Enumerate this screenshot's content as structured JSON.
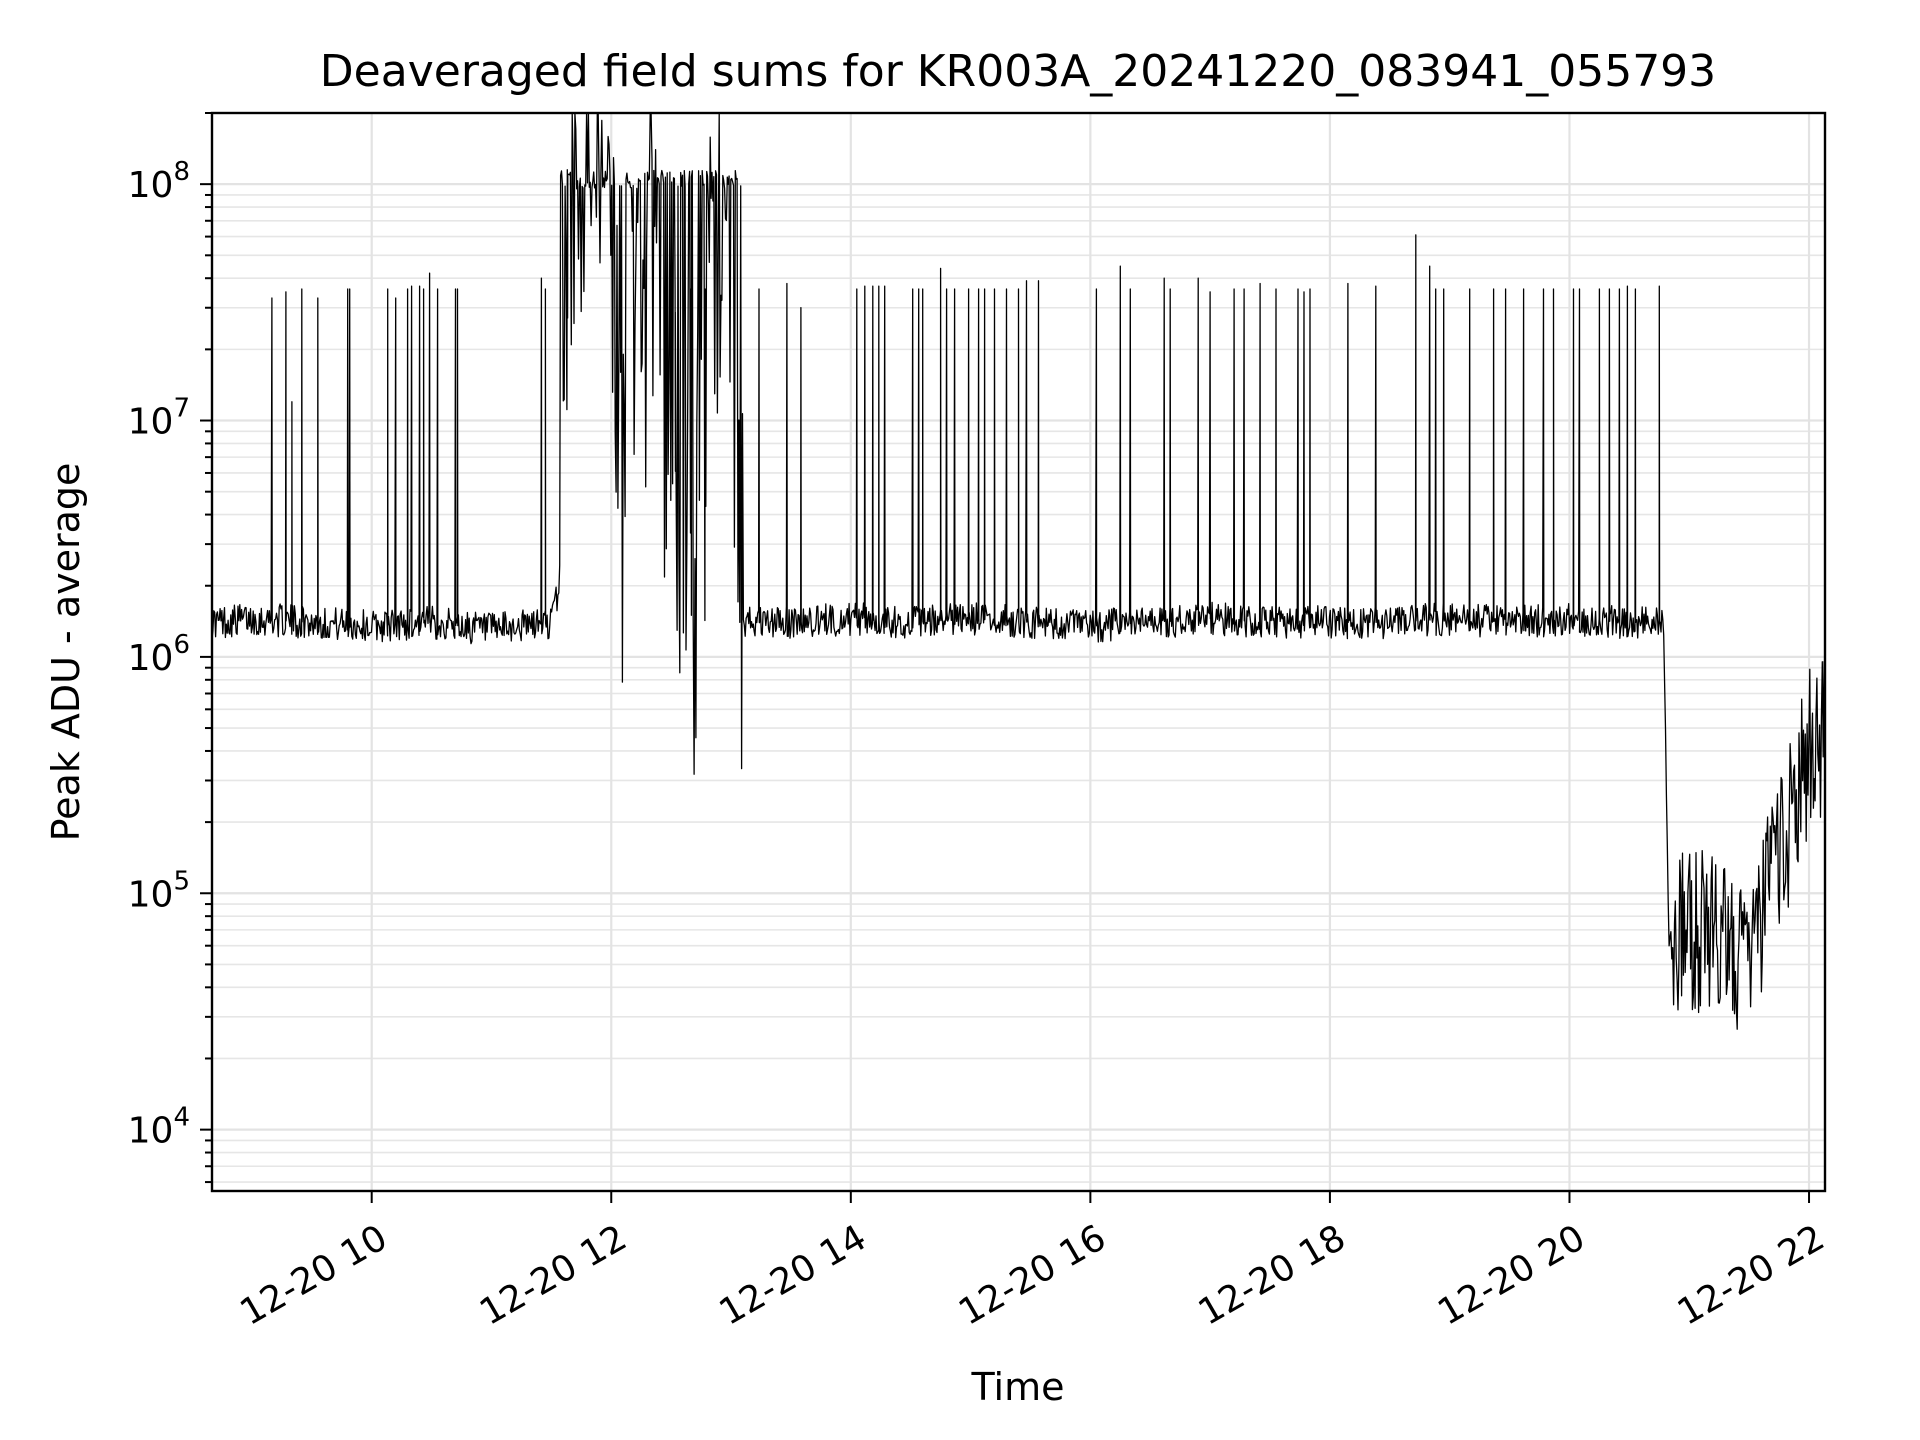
{
  "chart_data": {
    "type": "line",
    "title": "Deaveraged field sums for KR003A_20241220_083941_055793",
    "xlabel": "Time",
    "ylabel": "Peak ADU - average",
    "yscale": "log",
    "ylim": [
      5500,
      200000000
    ],
    "xlim": [
      "12-20 08:40",
      "12-20 22:08"
    ],
    "grid": true,
    "x_ticks": [
      "12-20 10",
      "12-20 12",
      "12-20 14",
      "12-20 16",
      "12-20 18",
      "12-20 20",
      "12-20 22"
    ],
    "y_ticks": [
      {
        "base": "10",
        "exp": "4",
        "value": 10000
      },
      {
        "base": "10",
        "exp": "5",
        "value": 100000
      },
      {
        "base": "10",
        "exp": "6",
        "value": 1000000
      },
      {
        "base": "10",
        "exp": "7",
        "value": 10000000
      },
      {
        "base": "10",
        "exp": "8",
        "value": 100000000
      }
    ],
    "series": [
      {
        "color": "#000000",
        "x": [
          "12-20 08:40",
          "12-20 09:00",
          "12-20 09:30",
          "12-20 10:00",
          "12-20 10:30",
          "12-20 11:00",
          "12-20 11:30",
          "12-20 11:34",
          "12-20 11:40",
          "12-20 12:00",
          "12-20 12:05",
          "12-20 12:20",
          "12-20 12:40",
          "12-20 12:55",
          "12-20 13:05",
          "12-20 13:30",
          "12-20 14:00",
          "12-20 14:30",
          "12-20 15:00",
          "12-20 15:30",
          "12-20 16:00",
          "12-20 16:30",
          "12-20 17:00",
          "12-20 17:30",
          "12-20 18:00",
          "12-20 18:30",
          "12-20 19:00",
          "12-20 19:30",
          "12-20 20:00",
          "12-20 20:30",
          "12-20 20:47",
          "12-20 20:50",
          "12-20 21:00",
          "12-20 21:15",
          "12-20 21:30",
          "12-20 21:40",
          "12-20 21:50",
          "12-20 22:00",
          "12-20 22:08"
        ],
        "y": [
          1400000,
          1450000,
          1400000,
          1350000,
          1400000,
          1300000,
          1400000,
          2000000,
          100000000,
          100000000,
          5000000,
          50000000,
          1500000,
          100000000,
          1400000,
          1400000,
          1450000,
          1400000,
          1450000,
          1400000,
          1350000,
          1400000,
          1450000,
          1400000,
          1400000,
          1400000,
          1450000,
          1400000,
          1450000,
          1400000,
          1400000,
          60000,
          70000,
          70000,
          50000,
          100000,
          200000,
          400000,
          450000
        ]
      }
    ],
    "spikes": {
      "description_values_only": true,
      "times": [
        "12-20 09:10",
        "12-20 09:17",
        "12-20 09:20",
        "12-20 09:25",
        "12-20 09:33",
        "12-20 09:48",
        "12-20 09:49",
        "12-20 10:08",
        "12-20 10:12",
        "12-20 10:18",
        "12-20 10:20",
        "12-20 10:24",
        "12-20 10:26",
        "12-20 10:29",
        "12-20 10:33",
        "12-20 10:42",
        "12-20 10:43",
        "12-20 11:25",
        "12-20 11:27",
        "12-20 11:38",
        "12-20 12:32",
        "12-20 12:40",
        "12-20 12:44",
        "12-20 12:47",
        "12-20 13:14",
        "12-20 13:28",
        "12-20 13:35",
        "12-20 14:03",
        "12-20 14:07",
        "12-20 14:11",
        "12-20 14:14",
        "12-20 14:17",
        "12-20 14:31",
        "12-20 14:34",
        "12-20 14:36",
        "12-20 14:45",
        "12-20 14:48",
        "12-20 14:52",
        "12-20 14:59",
        "12-20 15:04",
        "12-20 15:07",
        "12-20 15:12",
        "12-20 15:18",
        "12-20 15:24",
        "12-20 15:28",
        "12-20 15:34",
        "12-20 16:03",
        "12-20 16:15",
        "12-20 16:20",
        "12-20 16:37",
        "12-20 16:40",
        "12-20 16:54",
        "12-20 17:00",
        "12-20 17:12",
        "12-20 17:17",
        "12-20 17:25",
        "12-20 17:33",
        "12-20 17:44",
        "12-20 17:47",
        "12-20 17:50",
        "12-20 18:09",
        "12-20 18:23",
        "12-20 18:43",
        "12-20 18:50",
        "12-20 18:53",
        "12-20 18:57",
        "12-20 19:10",
        "12-20 19:22",
        "12-20 19:28",
        "12-20 19:37",
        "12-20 19:47",
        "12-20 19:52",
        "12-20 20:02",
        "12-20 20:05",
        "12-20 20:15",
        "12-20 20:20",
        "12-20 20:25",
        "12-20 20:29",
        "12-20 20:33",
        "12-20 20:45"
      ],
      "peak_values": [
        33000000,
        35000000,
        12000000,
        36000000,
        33000000,
        36000000,
        36000000,
        36000000,
        33000000,
        36000000,
        37000000,
        37000000,
        36000000,
        42000000,
        36000000,
        36000000,
        36000000,
        40000000,
        36000000,
        115000000,
        36000000,
        36000000,
        36000000,
        36000000,
        36000000,
        38000000,
        30000000,
        36000000,
        37000000,
        37000000,
        37000000,
        37000000,
        36000000,
        36000000,
        36000000,
        44000000,
        36000000,
        36000000,
        36000000,
        36000000,
        36000000,
        36000000,
        36000000,
        36000000,
        39000000,
        39000000,
        36000000,
        45000000,
        36000000,
        40000000,
        36000000,
        40000000,
        35000000,
        36000000,
        36000000,
        38000000,
        36000000,
        36000000,
        35000000,
        36000000,
        38000000,
        37000000,
        61000000,
        45000000,
        36000000,
        36000000,
        36000000,
        36000000,
        36000000,
        36000000,
        36000000,
        36000000,
        36000000,
        36000000,
        36000000,
        36000000,
        36000000,
        37000000,
        36000000,
        37000000
      ]
    }
  }
}
